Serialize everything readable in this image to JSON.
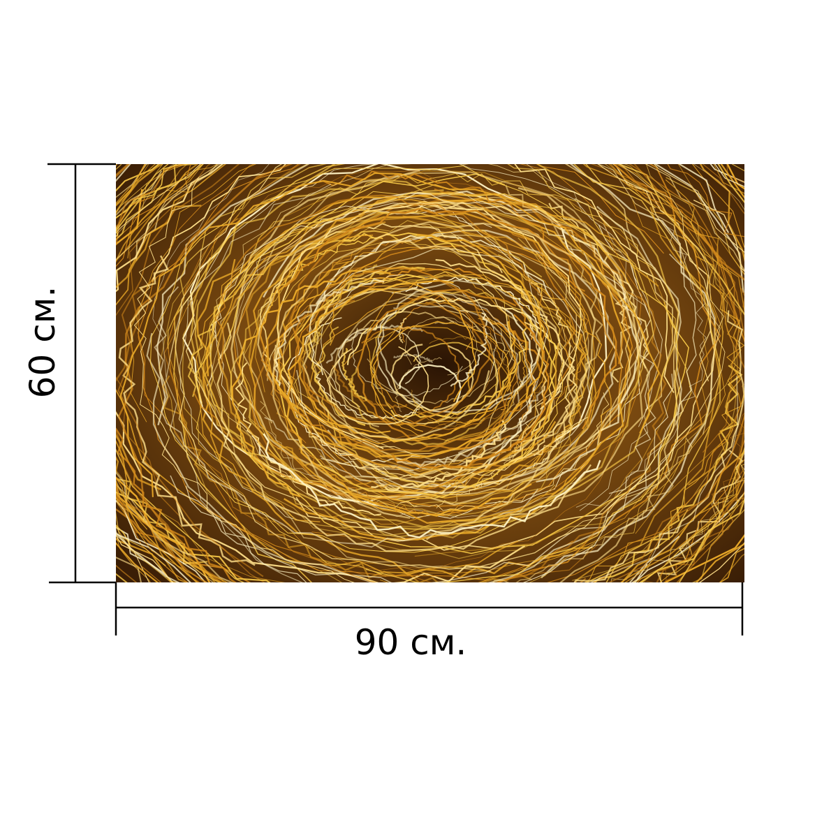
{
  "height_label": "60 см.",
  "width_label": "90 см."
}
